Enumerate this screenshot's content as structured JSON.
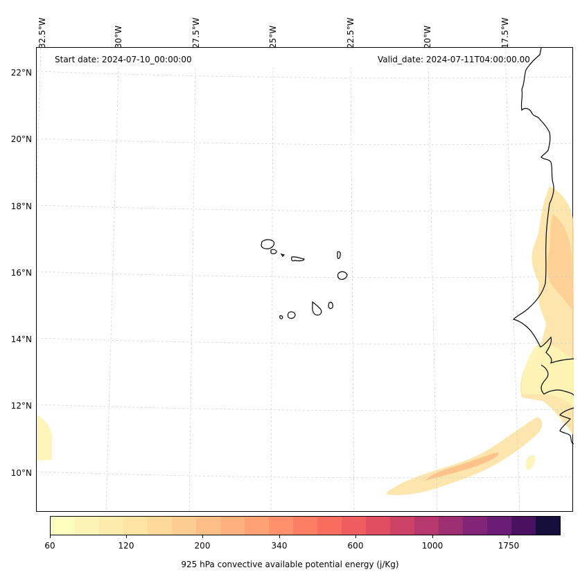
{
  "header": {
    "start_date": "Start date: 2024-07-10_00:00:00",
    "valid_date": "Valid_date: 2024-07-11T04:00:00.00"
  },
  "longitude_labels": [
    "32.5°W",
    "30°W",
    "27.5°W",
    "25°W",
    "22.5°W",
    "20°W",
    "17.5°W"
  ],
  "latitude_labels": [
    "22°N",
    "20°N",
    "18°N",
    "16°N",
    "14°N",
    "12°N",
    "10°N"
  ],
  "colorbar": {
    "title": "925 hPa convective available potential energy (j/Kg)",
    "tick_labels": [
      "60",
      "120",
      "200",
      "340",
      "600",
      "1000",
      "1750"
    ],
    "colors": [
      "#fcfdbf",
      "#fcf4b6",
      "#fcebad",
      "#fde3a4",
      "#fdd89a",
      "#fdcc90",
      "#fdbf86",
      "#fdb17c",
      "#fea273",
      "#fe916b",
      "#fc7f64",
      "#f76e5f",
      "#ef5d5e",
      "#e14e62",
      "#cd4267",
      "#b5386d",
      "#9c2e72",
      "#832576",
      "#6a1c76",
      "#4a1160",
      "#160f3b"
    ]
  },
  "map_features": {
    "coastline_color": "#000000",
    "gridline_color": "#cccccc",
    "islands": [
      "Cape Verde"
    ]
  }
}
